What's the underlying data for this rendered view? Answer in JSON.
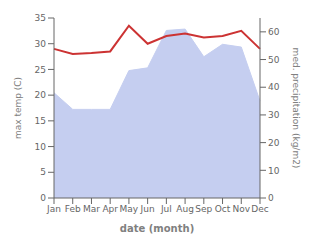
{
  "chart_data": {
    "type": "line",
    "xlabel": "date (month)",
    "ylabel": "max temp (C)",
    "y2label": "med. precipitation (kg/m2)",
    "categories": [
      "Jan",
      "Feb",
      "Mar",
      "Apr",
      "May",
      "Jun",
      "Jul",
      "Aug",
      "Sep",
      "Oct",
      "Nov",
      "Dec"
    ],
    "series": [
      {
        "type": "area",
        "axis": "y2",
        "color": "#c5cef0",
        "values": [
          38.0,
          32.0,
          32.0,
          32.0,
          46.0,
          47.0,
          60.5,
          61.0,
          51.0,
          55.5,
          54.5,
          35.0
        ]
      },
      {
        "type": "line",
        "color": "#cc3333",
        "values": [
          29.0,
          28.0,
          28.2,
          28.5,
          33.5,
          30.0,
          31.5,
          32.0,
          31.2,
          31.5,
          32.5,
          29.0
        ]
      }
    ],
    "ylim": [
      0,
      35
    ],
    "yticks": [
      0,
      5,
      10,
      15,
      20,
      25,
      30,
      35
    ],
    "y2lim": [
      0,
      65
    ],
    "y2ticks": [
      0,
      10,
      20,
      30,
      40,
      50,
      60
    ]
  }
}
